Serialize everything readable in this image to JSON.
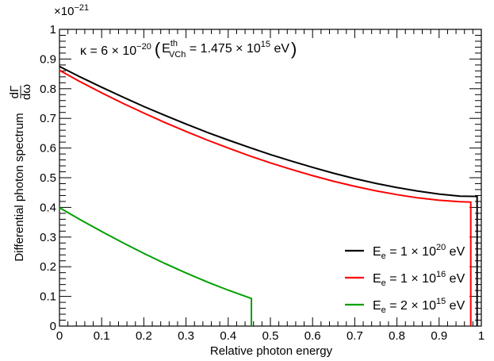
{
  "chart_data": {
    "type": "line",
    "title": "",
    "xlabel": "Relative photon energy",
    "ylabel_main": "Differential photon spectrum",
    "ylabel_frac_num": "dΓ",
    "ylabel_frac_den": "dω",
    "y_exponent": {
      "base": "×10",
      "power": "−21"
    },
    "xlim": [
      0,
      1
    ],
    "ylim": [
      0,
      1
    ],
    "x_ticks": [
      0,
      0.1,
      0.2,
      0.3,
      0.4,
      0.5,
      0.6,
      0.7,
      0.8,
      0.9,
      1
    ],
    "y_ticks": [
      0,
      0.1,
      0.2,
      0.3,
      0.4,
      0.5,
      0.6,
      0.7,
      0.8,
      0.9,
      1
    ],
    "x_tick_labels": [
      "0",
      "0.1",
      "0.2",
      "0.3",
      "0.4",
      "0.5",
      "0.6",
      "0.7",
      "0.8",
      "0.9",
      "1"
    ],
    "y_tick_labels": [
      "0",
      "0.1",
      "0.2",
      "0.3",
      "0.4",
      "0.5",
      "0.6",
      "0.7",
      "0.8",
      "0.9",
      "1"
    ],
    "grid": false,
    "legend_position": "bottom-right",
    "annotation": {
      "kappa": "κ = 6 × 10",
      "kappa_exp": "−20",
      "open": "(",
      "e_sym": "E",
      "e_sup": "th",
      "e_sub": "VCh",
      "eq": " = 1.475 × 10",
      "eq_exp": "15",
      "unit": " eV",
      "close": ")"
    },
    "series": [
      {
        "label_main": "E",
        "label_sub": "e",
        "label_mid": " = 1 × 10",
        "label_exp": "20",
        "label_unit": " eV",
        "color": "#000000",
        "x": [
          0,
          0.05,
          0.1,
          0.15,
          0.2,
          0.25,
          0.3,
          0.35,
          0.4,
          0.45,
          0.5,
          0.55,
          0.6,
          0.65,
          0.7,
          0.75,
          0.8,
          0.85,
          0.9,
          0.95,
          0.99
        ],
        "y": [
          0.875,
          0.839,
          0.805,
          0.772,
          0.74,
          0.71,
          0.681,
          0.653,
          0.627,
          0.602,
          0.578,
          0.556,
          0.535,
          0.515,
          0.497,
          0.481,
          0.467,
          0.455,
          0.445,
          0.438,
          0.437
        ],
        "drop_at_end": true
      },
      {
        "label_main": "E",
        "label_sub": "e",
        "label_mid": " = 1 × 10",
        "label_exp": "16",
        "label_unit": " eV",
        "color": "#ff0000",
        "x": [
          0,
          0.05,
          0.1,
          0.15,
          0.2,
          0.25,
          0.3,
          0.35,
          0.4,
          0.45,
          0.5,
          0.55,
          0.6,
          0.65,
          0.7,
          0.75,
          0.8,
          0.85,
          0.9,
          0.95,
          0.975
        ],
        "y": [
          0.862,
          0.823,
          0.786,
          0.751,
          0.718,
          0.686,
          0.656,
          0.627,
          0.6,
          0.574,
          0.55,
          0.528,
          0.507,
          0.488,
          0.471,
          0.456,
          0.443,
          0.432,
          0.424,
          0.419,
          0.418
        ],
        "drop_at_end": true
      },
      {
        "label_main": "E",
        "label_sub": "e",
        "label_mid": " = 2 × 10",
        "label_exp": "15",
        "label_unit": " eV",
        "color": "#00a000",
        "x": [
          0,
          0.05,
          0.1,
          0.15,
          0.2,
          0.25,
          0.3,
          0.35,
          0.4,
          0.455
        ],
        "y": [
          0.399,
          0.358,
          0.319,
          0.281,
          0.245,
          0.211,
          0.179,
          0.149,
          0.121,
          0.093
        ],
        "drop_at_end": true
      }
    ]
  }
}
